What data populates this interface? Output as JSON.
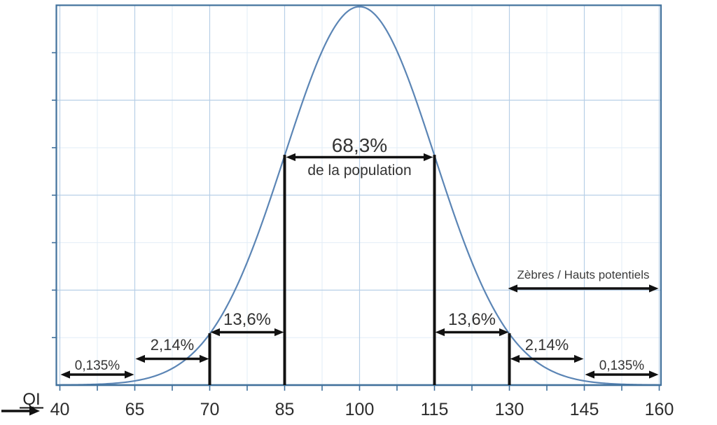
{
  "chart_data": {
    "type": "line",
    "subtype": "normal-distribution-curve",
    "title": "",
    "xlabel": "QI",
    "ylabel": "",
    "grid": "on",
    "x_tick_labels": [
      "40",
      "65",
      "70",
      "85",
      "100",
      "115",
      "130",
      "145",
      "160"
    ],
    "distribution": {
      "mean": 100,
      "sd": 15,
      "peak_at_tick": "100"
    },
    "center_annotation": {
      "percent": "68,3%",
      "caption": "de la population",
      "from_tick": "85",
      "to_tick": "115"
    },
    "segments": [
      {
        "percent": "0,135%",
        "from_tick": "40",
        "to_tick": "65"
      },
      {
        "percent": "2,14%",
        "from_tick": "65",
        "to_tick": "70"
      },
      {
        "percent": "13,6%",
        "from_tick": "70",
        "to_tick": "85"
      },
      {
        "percent": "13,6%",
        "from_tick": "115",
        "to_tick": "130"
      },
      {
        "percent": "2,14%",
        "from_tick": "130",
        "to_tick": "145"
      },
      {
        "percent": "0,135%",
        "from_tick": "145",
        "to_tick": "160"
      }
    ],
    "zebres": {
      "label": "Zèbres / Hauts potentiels",
      "from_tick": "130",
      "to_tick": "160"
    },
    "marker_lines_at_ticks": [
      "70",
      "85",
      "115",
      "130"
    ],
    "colors": {
      "curve": "#5b85b5",
      "frame": "#41719c",
      "grid_major": "#b7cfe7",
      "grid_minor": "#e2edf7",
      "annotation": "#111111",
      "annotation_text": "#333333",
      "tick_label": "#2d2d2d"
    }
  }
}
